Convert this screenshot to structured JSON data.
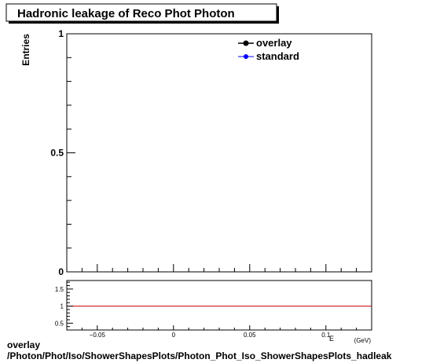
{
  "chart_data": [
    {
      "type": "line",
      "title": "Hadronic leakage of Reco Phot Photon",
      "ylabel": "Entries",
      "xlabel": "E",
      "xlabel_unit": "(GeV)",
      "xlim": [
        -0.07,
        0.13
      ],
      "ylim": [
        0,
        1
      ],
      "y_ticks": [
        {
          "value": 0,
          "label": "0"
        },
        {
          "value": 0.5,
          "label": "0.5"
        },
        {
          "value": 1,
          "label": "1"
        }
      ],
      "grid": false,
      "legend": {
        "placement": "top-right",
        "entries": [
          {
            "name": "overlay",
            "color": "#000000"
          },
          {
            "name": "standard",
            "color": "#0000ff"
          }
        ]
      },
      "series": []
    },
    {
      "type": "line",
      "xlim": [
        -0.07,
        0.13
      ],
      "ylim": [
        0.3,
        1.75
      ],
      "x_ticks": [
        {
          "value": -0.05,
          "label": "−0.05"
        },
        {
          "value": 0,
          "label": "0"
        },
        {
          "value": 0.05,
          "label": "0.05"
        },
        {
          "value": 0.1,
          "label": "0.1"
        }
      ],
      "y_ticks": [
        {
          "value": 0.5,
          "label": "0.5"
        },
        {
          "value": 1,
          "label": "1"
        },
        {
          "value": 1.5,
          "label": "1.5"
        }
      ],
      "reference_line": {
        "value": 1,
        "color": "#cc0000"
      },
      "series": []
    }
  ],
  "footer": {
    "line1": "overlay",
    "line2": "/Photon/Phot/Iso/ShowerShapesPlots/Photon_Phot_Iso_ShowerShapesPlots_hadleak"
  }
}
